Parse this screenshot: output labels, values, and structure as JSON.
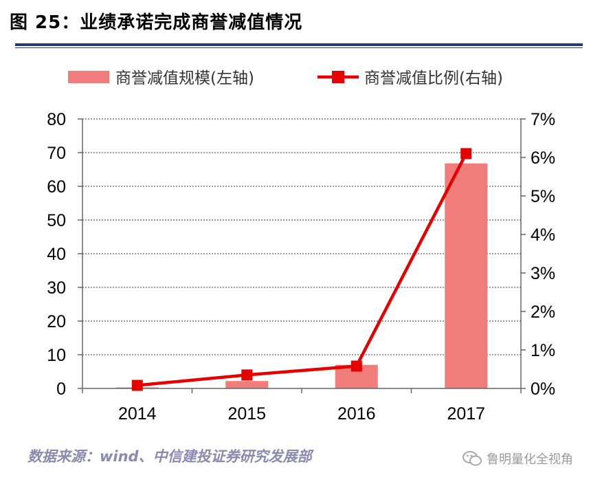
{
  "figure": {
    "title": "图 25：业绩承诺完成商誉减值情况",
    "source": "数据来源：wind、中信建投证券研究发展部",
    "watermark": "鲁明量化全视角"
  },
  "colors": {
    "bar": "#f07c7c",
    "line": "#e60000",
    "title_rule": "#1f3b7a"
  },
  "chart_data": {
    "type": "bar",
    "categories": [
      "2014",
      "2015",
      "2016",
      "2017"
    ],
    "series": [
      {
        "name": "商誉减值规模(左轴)",
        "type": "bar",
        "axis": "left",
        "values": [
          0.3,
          2.2,
          7.0,
          66.8
        ]
      },
      {
        "name": "商誉减值比例(右轴)",
        "type": "line",
        "axis": "right",
        "values": [
          0.0008,
          0.0035,
          0.0058,
          0.061
        ]
      }
    ],
    "y_left": {
      "min": 0,
      "max": 80,
      "ticks": [
        0,
        10,
        20,
        30,
        40,
        50,
        60,
        70,
        80
      ],
      "tick_labels": [
        "0",
        "10",
        "20",
        "30",
        "40",
        "50",
        "60",
        "70",
        "80"
      ]
    },
    "y_right": {
      "min": 0,
      "max": 0.07,
      "ticks": [
        0,
        0.01,
        0.02,
        0.03,
        0.04,
        0.05,
        0.06,
        0.07
      ],
      "tick_labels": [
        "0%",
        "1%",
        "2%",
        "3%",
        "4%",
        "5%",
        "6%",
        "7%"
      ]
    },
    "grid": true,
    "legend": "top"
  }
}
